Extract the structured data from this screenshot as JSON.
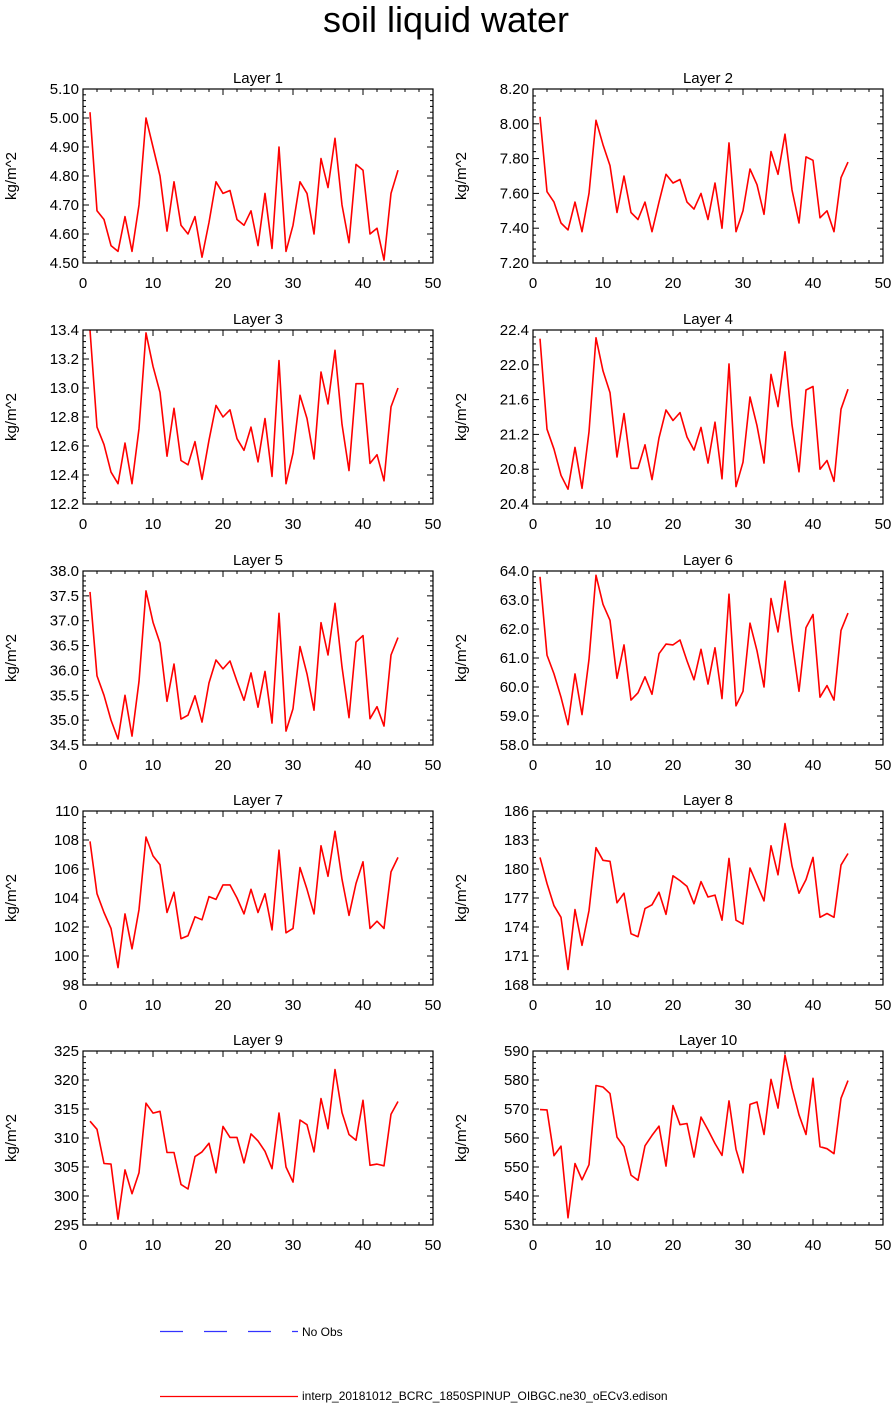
{
  "title": "soil liquid water",
  "colors": {
    "model": "#ff0000",
    "obs": "#3333ff",
    "axis": "#000000"
  },
  "legend": {
    "obs_label": "No Obs",
    "model_label": "interp_20181012_BCRC_1850SPINUP_OIBGC.ne30_oECv3.edison"
  },
  "chart_data": [
    {
      "type": "line",
      "title": "Layer 1",
      "ylabel": "kg/m^2",
      "xlim": [
        0,
        50
      ],
      "ylim": [
        4.5,
        5.1
      ],
      "xticks": [
        0,
        10,
        20,
        30,
        40,
        50
      ],
      "yticks": [
        "4.50",
        "4.60",
        "4.70",
        "4.80",
        "4.90",
        "5.00",
        "5.10"
      ],
      "x": [
        1,
        2,
        3,
        4,
        5,
        6,
        7,
        8,
        9,
        10,
        11,
        12,
        13,
        14,
        15,
        16,
        17,
        18,
        19,
        20,
        21,
        22,
        23,
        24,
        25,
        26,
        27,
        28,
        29,
        30,
        31,
        32,
        33,
        34,
        35,
        36,
        37,
        38,
        39,
        40,
        41,
        42,
        43,
        44,
        45
      ],
      "series": [
        {
          "values": [
            5.02,
            4.68,
            4.65,
            4.56,
            4.54,
            4.66,
            4.54,
            4.7,
            5.0,
            4.9,
            4.8,
            4.61,
            4.78,
            4.63,
            4.6,
            4.66,
            4.52,
            4.64,
            4.78,
            4.74,
            4.75,
            4.65,
            4.63,
            4.68,
            4.56,
            4.74,
            4.55,
            4.9,
            4.54,
            4.63,
            4.78,
            4.74,
            4.6,
            4.86,
            4.76,
            4.93,
            4.7,
            4.57,
            4.84,
            4.82,
            4.6,
            4.62,
            4.51,
            4.74,
            4.82
          ]
        }
      ]
    },
    {
      "type": "line",
      "title": "Layer 2",
      "ylabel": "kg/m^2",
      "xlim": [
        0,
        50
      ],
      "ylim": [
        7.2,
        8.2
      ],
      "xticks": [
        0,
        10,
        20,
        30,
        40,
        50
      ],
      "yticks": [
        "7.20",
        "7.40",
        "7.60",
        "7.80",
        "8.00",
        "8.20"
      ],
      "x": [
        1,
        2,
        3,
        4,
        5,
        6,
        7,
        8,
        9,
        10,
        11,
        12,
        13,
        14,
        15,
        16,
        17,
        18,
        19,
        20,
        21,
        22,
        23,
        24,
        25,
        26,
        27,
        28,
        29,
        30,
        31,
        32,
        33,
        34,
        35,
        36,
        37,
        38,
        39,
        40,
        41,
        42,
        43,
        44,
        45
      ],
      "series": [
        {
          "values": [
            8.04,
            7.61,
            7.55,
            7.43,
            7.39,
            7.55,
            7.38,
            7.6,
            8.02,
            7.88,
            7.76,
            7.49,
            7.7,
            7.49,
            7.45,
            7.55,
            7.38,
            7.55,
            7.71,
            7.66,
            7.68,
            7.55,
            7.51,
            7.6,
            7.45,
            7.66,
            7.4,
            7.89,
            7.38,
            7.5,
            7.74,
            7.65,
            7.48,
            7.84,
            7.71,
            7.94,
            7.62,
            7.43,
            7.81,
            7.79,
            7.46,
            7.5,
            7.38,
            7.69,
            7.78
          ]
        }
      ]
    },
    {
      "type": "line",
      "title": "Layer 3",
      "ylabel": "kg/m^2",
      "xlim": [
        0,
        50
      ],
      "ylim": [
        12.2,
        13.4
      ],
      "xticks": [
        0,
        10,
        20,
        30,
        40,
        50
      ],
      "yticks": [
        "12.2",
        "12.4",
        "12.6",
        "12.8",
        "13.0",
        "13.2",
        "13.4"
      ],
      "x": [
        1,
        2,
        3,
        4,
        5,
        6,
        7,
        8,
        9,
        10,
        11,
        12,
        13,
        14,
        15,
        16,
        17,
        18,
        19,
        20,
        21,
        22,
        23,
        24,
        25,
        26,
        27,
        28,
        29,
        30,
        31,
        32,
        33,
        34,
        35,
        36,
        37,
        38,
        39,
        40,
        41,
        42,
        43,
        44,
        45
      ],
      "series": [
        {
          "values": [
            13.4,
            12.73,
            12.61,
            12.42,
            12.34,
            12.62,
            12.34,
            12.72,
            13.38,
            13.15,
            12.97,
            12.53,
            12.86,
            12.5,
            12.47,
            12.63,
            12.37,
            12.64,
            12.88,
            12.8,
            12.85,
            12.65,
            12.57,
            12.73,
            12.49,
            12.79,
            12.39,
            13.19,
            12.34,
            12.55,
            12.95,
            12.79,
            12.51,
            13.11,
            12.89,
            13.26,
            12.75,
            12.43,
            13.03,
            13.03,
            12.48,
            12.54,
            12.36,
            12.87,
            13.0
          ]
        }
      ]
    },
    {
      "type": "line",
      "title": "Layer 4",
      "ylabel": "kg/m^2",
      "xlim": [
        0,
        50
      ],
      "ylim": [
        20.4,
        22.4
      ],
      "xticks": [
        0,
        10,
        20,
        30,
        40,
        50
      ],
      "yticks": [
        "20.4",
        "20.8",
        "21.2",
        "21.6",
        "22.0",
        "22.4"
      ],
      "x": [
        1,
        2,
        3,
        4,
        5,
        6,
        7,
        8,
        9,
        10,
        11,
        12,
        13,
        14,
        15,
        16,
        17,
        18,
        19,
        20,
        21,
        22,
        23,
        24,
        25,
        26,
        27,
        28,
        29,
        30,
        31,
        32,
        33,
        34,
        35,
        36,
        37,
        38,
        39,
        40,
        41,
        42,
        43,
        44,
        45
      ],
      "series": [
        {
          "values": [
            22.3,
            21.26,
            21.03,
            20.73,
            20.57,
            21.05,
            20.58,
            21.23,
            22.31,
            21.93,
            21.68,
            20.94,
            21.44,
            20.81,
            20.81,
            21.08,
            20.68,
            21.16,
            21.48,
            21.36,
            21.45,
            21.17,
            21.02,
            21.28,
            20.87,
            21.34,
            20.69,
            22.01,
            20.6,
            20.88,
            21.63,
            21.3,
            20.87,
            21.89,
            21.52,
            22.15,
            21.31,
            20.77,
            21.71,
            21.75,
            20.8,
            20.9,
            20.66,
            21.49,
            21.72
          ]
        }
      ]
    },
    {
      "type": "line",
      "title": "Layer 5",
      "ylabel": "kg/m^2",
      "xlim": [
        0,
        50
      ],
      "ylim": [
        34.5,
        38.0
      ],
      "xticks": [
        0,
        10,
        20,
        30,
        40,
        50
      ],
      "yticks": [
        "34.5",
        "35.0",
        "35.5",
        "36.0",
        "36.5",
        "37.0",
        "37.5",
        "38.0"
      ],
      "x": [
        1,
        2,
        3,
        4,
        5,
        6,
        7,
        8,
        9,
        10,
        11,
        12,
        13,
        14,
        15,
        16,
        17,
        18,
        19,
        20,
        21,
        22,
        23,
        24,
        25,
        26,
        27,
        28,
        29,
        30,
        31,
        32,
        33,
        34,
        35,
        36,
        37,
        38,
        39,
        40,
        41,
        42,
        43,
        44,
        45
      ],
      "series": [
        {
          "values": [
            37.58,
            35.89,
            35.5,
            35.0,
            34.62,
            35.5,
            34.68,
            35.78,
            37.6,
            36.97,
            36.55,
            35.38,
            36.13,
            35.02,
            35.1,
            35.49,
            34.96,
            35.75,
            36.21,
            36.03,
            36.19,
            35.78,
            35.4,
            35.95,
            35.26,
            35.98,
            34.94,
            37.15,
            34.78,
            35.23,
            36.48,
            35.93,
            35.2,
            36.96,
            36.31,
            37.35,
            36.07,
            35.05,
            36.57,
            36.7,
            35.03,
            35.27,
            34.88,
            36.31,
            36.66
          ]
        }
      ]
    },
    {
      "type": "line",
      "title": "Layer 6",
      "ylabel": "kg/m^2",
      "xlim": [
        0,
        50
      ],
      "ylim": [
        58.0,
        64.0
      ],
      "xticks": [
        0,
        10,
        20,
        30,
        40,
        50
      ],
      "yticks": [
        "58.0",
        "59.0",
        "60.0",
        "61.0",
        "62.0",
        "63.0",
        "64.0"
      ],
      "x": [
        1,
        2,
        3,
        4,
        5,
        6,
        7,
        8,
        9,
        10,
        11,
        12,
        13,
        14,
        15,
        16,
        17,
        18,
        19,
        20,
        21,
        22,
        23,
        24,
        25,
        26,
        27,
        28,
        29,
        30,
        31,
        32,
        33,
        34,
        35,
        36,
        37,
        38,
        39,
        40,
        41,
        42,
        43,
        44,
        45
      ],
      "series": [
        {
          "values": [
            63.8,
            61.1,
            60.45,
            59.65,
            58.7,
            60.45,
            59.05,
            60.95,
            63.85,
            62.85,
            62.3,
            60.3,
            61.45,
            59.55,
            59.8,
            60.35,
            59.75,
            61.15,
            61.48,
            61.45,
            61.62,
            60.9,
            60.25,
            61.3,
            60.1,
            61.35,
            59.6,
            63.2,
            59.35,
            59.85,
            62.2,
            61.25,
            60.0,
            63.05,
            61.9,
            63.65,
            61.6,
            59.85,
            62.05,
            62.5,
            59.65,
            60.05,
            59.55,
            61.95,
            62.55
          ]
        }
      ]
    },
    {
      "type": "line",
      "title": "Layer 7",
      "ylabel": "kg/m^2",
      "xlim": [
        0,
        50
      ],
      "ylim": [
        98,
        110
      ],
      "xticks": [
        0,
        10,
        20,
        30,
        40,
        50
      ],
      "yticks": [
        "98",
        "100",
        "102",
        "104",
        "106",
        "108",
        "110"
      ],
      "x": [
        1,
        2,
        3,
        4,
        5,
        6,
        7,
        8,
        9,
        10,
        11,
        12,
        13,
        14,
        15,
        16,
        17,
        18,
        19,
        20,
        21,
        22,
        23,
        24,
        25,
        26,
        27,
        28,
        29,
        30,
        31,
        32,
        33,
        34,
        35,
        36,
        37,
        38,
        39,
        40,
        41,
        42,
        43,
        44,
        45
      ],
      "series": [
        {
          "values": [
            107.9,
            104.3,
            103.0,
            101.9,
            99.2,
            102.9,
            100.5,
            103.2,
            108.2,
            106.9,
            106.3,
            103.0,
            104.4,
            101.2,
            101.4,
            102.7,
            102.5,
            104.1,
            103.9,
            104.9,
            104.9,
            104.0,
            102.9,
            104.6,
            103.0,
            104.3,
            101.8,
            107.3,
            101.6,
            101.9,
            106.1,
            104.6,
            102.9,
            107.6,
            105.5,
            108.6,
            105.3,
            102.8,
            105.0,
            106.5,
            101.9,
            102.4,
            101.9,
            105.8,
            106.8
          ]
        }
      ]
    },
    {
      "type": "line",
      "title": "Layer 8",
      "ylabel": "kg/m^2",
      "xlim": [
        0,
        50
      ],
      "ylim": [
        168,
        186
      ],
      "xticks": [
        0,
        10,
        20,
        30,
        40,
        50
      ],
      "yticks": [
        "168",
        "171",
        "174",
        "177",
        "180",
        "183",
        "186"
      ],
      "x": [
        1,
        2,
        3,
        4,
        5,
        6,
        7,
        8,
        9,
        10,
        11,
        12,
        13,
        14,
        15,
        16,
        17,
        18,
        19,
        20,
        21,
        22,
        23,
        24,
        25,
        26,
        27,
        28,
        29,
        30,
        31,
        32,
        33,
        34,
        35,
        36,
        37,
        38,
        39,
        40,
        41,
        42,
        43,
        44,
        45
      ],
      "series": [
        {
          "values": [
            181.2,
            178.5,
            176.2,
            175.0,
            169.6,
            175.8,
            172.1,
            175.7,
            182.2,
            180.9,
            180.8,
            176.5,
            177.5,
            173.3,
            173.0,
            175.9,
            176.3,
            177.6,
            175.3,
            179.3,
            178.8,
            178.2,
            176.4,
            178.7,
            177.1,
            177.3,
            174.7,
            181.1,
            174.7,
            174.3,
            180.1,
            178.4,
            176.7,
            182.4,
            179.4,
            184.7,
            180.3,
            177.5,
            178.9,
            181.2,
            175.0,
            175.4,
            175.0,
            180.4,
            181.6
          ]
        }
      ]
    },
    {
      "type": "line",
      "title": "Layer 9",
      "ylabel": "kg/m^2",
      "xlim": [
        0,
        50
      ],
      "ylim": [
        295,
        325
      ],
      "xticks": [
        0,
        10,
        20,
        30,
        40,
        50
      ],
      "yticks": [
        "295",
        "300",
        "305",
        "310",
        "315",
        "320",
        "325"
      ],
      "x": [
        1,
        2,
        3,
        4,
        5,
        6,
        7,
        8,
        9,
        10,
        11,
        12,
        13,
        14,
        15,
        16,
        17,
        18,
        19,
        20,
        21,
        22,
        23,
        24,
        25,
        26,
        27,
        28,
        29,
        30,
        31,
        32,
        33,
        34,
        35,
        36,
        37,
        38,
        39,
        40,
        41,
        42,
        43,
        44,
        45
      ],
      "series": [
        {
          "values": [
            312.9,
            311.5,
            305.6,
            305.5,
            296.0,
            304.5,
            300.4,
            304.0,
            316.0,
            314.3,
            314.6,
            307.5,
            307.5,
            302.0,
            301.2,
            306.8,
            307.6,
            309.1,
            304.0,
            312.0,
            310.1,
            310.1,
            305.7,
            310.7,
            309.5,
            307.7,
            304.7,
            314.3,
            305.0,
            302.4,
            313.1,
            312.3,
            307.6,
            316.8,
            311.6,
            321.8,
            314.4,
            310.6,
            309.6,
            316.5,
            305.3,
            305.5,
            305.2,
            314.1,
            316.3
          ]
        }
      ]
    },
    {
      "type": "line",
      "title": "Layer 10",
      "ylabel": "kg/m^2",
      "xlim": [
        0,
        50
      ],
      "ylim": [
        530,
        590
      ],
      "xticks": [
        0,
        10,
        20,
        30,
        40,
        50
      ],
      "yticks": [
        "530",
        "540",
        "550",
        "560",
        "570",
        "580",
        "590"
      ],
      "x": [
        1,
        2,
        3,
        4,
        5,
        6,
        7,
        8,
        9,
        10,
        11,
        12,
        13,
        14,
        15,
        16,
        17,
        18,
        19,
        20,
        21,
        22,
        23,
        24,
        25,
        26,
        27,
        28,
        29,
        30,
        31,
        32,
        33,
        34,
        35,
        36,
        37,
        38,
        39,
        40,
        41,
        42,
        43,
        44,
        45
      ],
      "series": [
        {
          "values": [
            569.8,
            569.7,
            553.9,
            557.2,
            532.5,
            551.2,
            545.6,
            550.8,
            578.1,
            577.6,
            575.3,
            560.3,
            557.0,
            547.2,
            545.4,
            557.3,
            560.9,
            564.1,
            550.3,
            571.2,
            564.6,
            565.0,
            553.4,
            567.2,
            562.8,
            558.1,
            554.0,
            572.8,
            556.1,
            548.0,
            571.6,
            572.4,
            561.2,
            580.2,
            570.3,
            588.6,
            577.3,
            568.0,
            561.2,
            580.6,
            557.0,
            556.3,
            554.6,
            573.7,
            579.8
          ]
        }
      ]
    }
  ]
}
